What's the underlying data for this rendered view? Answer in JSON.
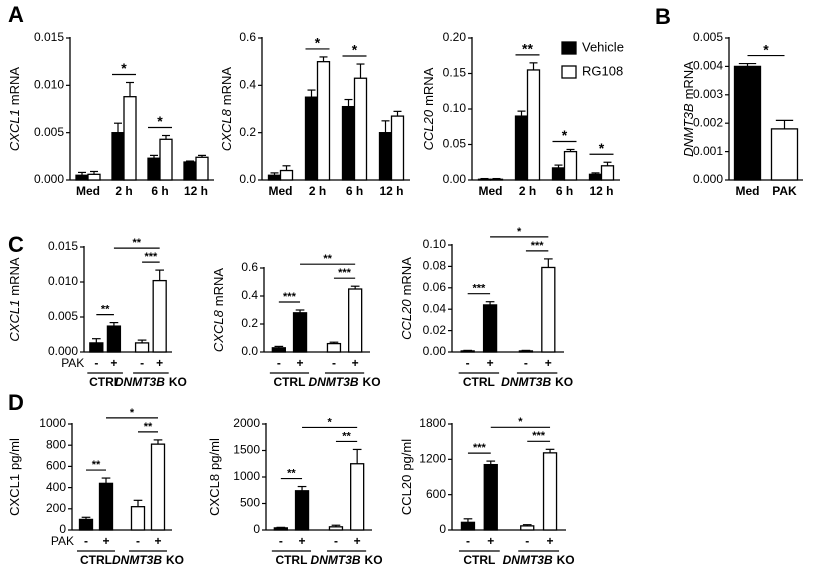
{
  "panel_labels": [
    "A",
    "B",
    "C",
    "D"
  ],
  "chart_data": [
    {
      "type": "bar",
      "ylabel": [
        {
          "text": "CXCL1",
          "italic": true
        },
        {
          "text": "mRNA",
          "italic": false
        }
      ],
      "categories": [
        "Med",
        "2 h",
        "6 h",
        "12 h"
      ],
      "ylim": [
        0,
        0.015
      ],
      "yticks": [
        {
          "value": 0,
          "label": "0.000"
        },
        0.005,
        {
          "value": 0.01,
          "label": "0.010"
        },
        0.015
      ],
      "series": [
        {
          "color": "#000000",
          "values": [
            0.0005,
            0.005,
            0.0023,
            0.0019
          ],
          "errors": [
            0.0003,
            0.001,
            0.0003,
            0.0001
          ]
        },
        {
          "color": "#ffffff",
          "values": [
            0.0006,
            0.0088,
            0.0043,
            0.0024
          ],
          "errors": [
            0.0003,
            0.0015,
            0.0004,
            0.0002
          ]
        }
      ],
      "significance": [
        {
          "category": 1,
          "label": "*"
        },
        {
          "category": 2,
          "label": "*"
        }
      ]
    },
    {
      "type": "bar",
      "ylabel": [
        {
          "text": "CXCL8",
          "italic": true
        },
        {
          "text": "mRNA",
          "italic": false
        }
      ],
      "categories": [
        "Med",
        "2 h",
        "6 h",
        "12 h"
      ],
      "ylim": [
        0,
        0.6
      ],
      "yticks": [
        {
          "value": 0,
          "label": "0.0"
        },
        0.2,
        0.4,
        0.6
      ],
      "series": [
        {
          "color": "#000000",
          "values": [
            0.02,
            0.35,
            0.31,
            0.2
          ],
          "errors": [
            0.01,
            0.03,
            0.03,
            0.05
          ]
        },
        {
          "color": "#ffffff",
          "values": [
            0.04,
            0.5,
            0.43,
            0.27
          ],
          "errors": [
            0.02,
            0.02,
            0.06,
            0.02
          ]
        }
      ],
      "significance": [
        {
          "category": 1,
          "label": "*"
        },
        {
          "category": 2,
          "label": "*"
        }
      ]
    },
    {
      "type": "bar",
      "ylabel": [
        {
          "text": "CCL20",
          "italic": true
        },
        {
          "text": "mRNA",
          "italic": false
        }
      ],
      "categories": [
        "Med",
        "2 h",
        "6 h",
        "12 h"
      ],
      "ylim": [
        0,
        0.2
      ],
      "yticks": [
        {
          "value": 0,
          "label": "0.00"
        },
        0.05,
        {
          "value": 0.1,
          "label": "0.10"
        },
        0.15,
        {
          "value": 0.2,
          "label": "0.20"
        }
      ],
      "series": [
        {
          "name": "Vehicle",
          "color": "#000000",
          "values": [
            0.001,
            0.09,
            0.017,
            0.008
          ],
          "errors": [
            0.001,
            0.007,
            0.004,
            0.002
          ]
        },
        {
          "name": "RG108",
          "color": "#ffffff",
          "values": [
            0.001,
            0.155,
            0.04,
            0.02
          ],
          "errors": [
            0.001,
            0.01,
            0.003,
            0.005
          ]
        }
      ],
      "legend": "upper right",
      "significance": [
        {
          "category": 1,
          "label": "**"
        },
        {
          "category": 2,
          "label": "*"
        },
        {
          "category": 3,
          "label": "*"
        }
      ]
    },
    {
      "type": "bar",
      "ylabel": [
        {
          "text": "DNMT3B",
          "italic": true
        },
        {
          "text": "mRNA",
          "italic": false
        }
      ],
      "categories": [
        "Med",
        "PAK"
      ],
      "ylim": [
        0,
        0.005
      ],
      "yticks": [
        {
          "value": 0,
          "label": "0.000"
        },
        0.001,
        0.002,
        0.003,
        0.004,
        0.005
      ],
      "series": [
        {
          "colors": [
            "#000000",
            "#ffffff"
          ],
          "values": [
            0.004,
            0.0018
          ],
          "errors": [
            0.0001,
            0.0003
          ]
        }
      ],
      "significance": [
        {
          "from": 0,
          "to": 1,
          "label": "*"
        }
      ]
    },
    {
      "type": "bar",
      "ylabel": [
        {
          "text": "CXCL1",
          "italic": true
        },
        {
          "text": "mRNA",
          "italic": false
        }
      ],
      "categories": [
        "-",
        "+",
        "-",
        "+"
      ],
      "row_label": "PAK",
      "groups": [
        [
          {
            "text": "CTRL",
            "italic": false
          }
        ],
        [
          {
            "text": "DNMT3B",
            "italic": true
          },
          {
            "text": "KO",
            "italic": false
          }
        ]
      ],
      "ylim": [
        0,
        0.015
      ],
      "yticks": [
        {
          "value": 0,
          "label": "0.000"
        },
        0.005,
        {
          "value": 0.01,
          "label": "0.010"
        },
        0.015
      ],
      "series": [
        {
          "colors": [
            "#000000",
            "#000000",
            "#ffffff",
            "#ffffff"
          ],
          "values": [
            0.0013,
            0.0037,
            0.0013,
            0.0102
          ],
          "errors": [
            0.0006,
            0.0005,
            0.0004,
            0.0015
          ]
        }
      ],
      "significance": [
        {
          "from": 0,
          "to": 1,
          "label": "**"
        },
        {
          "from": 2,
          "to": 3,
          "label": "***"
        },
        {
          "from": 1,
          "to": 3,
          "label": "**"
        }
      ]
    },
    {
      "type": "bar",
      "ylabel": [
        {
          "text": "CXCL8",
          "italic": true
        },
        {
          "text": "mRNA",
          "italic": false
        }
      ],
      "categories": [
        "-",
        "+",
        "-",
        "+"
      ],
      "groups": [
        [
          {
            "text": "CTRL",
            "italic": false
          }
        ],
        [
          {
            "text": "DNMT3B",
            "italic": true
          },
          {
            "text": "KO",
            "italic": false
          }
        ]
      ],
      "ylim": [
        0,
        0.6
      ],
      "yticks": [
        {
          "value": 0,
          "label": "0.0"
        },
        0.2,
        0.4,
        0.6
      ],
      "series": [
        {
          "colors": [
            "#000000",
            "#000000",
            "#ffffff",
            "#ffffff"
          ],
          "values": [
            0.03,
            0.28,
            0.06,
            0.45
          ],
          "errors": [
            0.01,
            0.02,
            0.01,
            0.02
          ]
        }
      ],
      "significance": [
        {
          "from": 0,
          "to": 1,
          "label": "***"
        },
        {
          "from": 2,
          "to": 3,
          "label": "***"
        },
        {
          "from": 1,
          "to": 3,
          "label": "**"
        }
      ]
    },
    {
      "type": "bar",
      "ylabel": [
        {
          "text": "CCL20",
          "italic": true
        },
        {
          "text": "mRNA",
          "italic": false
        }
      ],
      "categories": [
        "-",
        "+",
        "-",
        "+"
      ],
      "groups": [
        [
          {
            "text": "CTRL",
            "italic": false
          }
        ],
        [
          {
            "text": "DNMT3B",
            "italic": true
          },
          {
            "text": "KO",
            "italic": false
          }
        ]
      ],
      "ylim": [
        0,
        0.1
      ],
      "yticks": [
        {
          "value": 0,
          "label": "0.00"
        },
        0.02,
        0.04,
        0.06,
        0.08,
        {
          "value": 0.1,
          "label": "0.10"
        }
      ],
      "series": [
        {
          "colors": [
            "#000000",
            "#000000",
            "#ffffff",
            "#ffffff"
          ],
          "values": [
            0.001,
            0.044,
            0.001,
            0.079
          ],
          "errors": [
            0.0005,
            0.003,
            0.0005,
            0.008
          ]
        }
      ],
      "significance": [
        {
          "from": 0,
          "to": 1,
          "label": "***"
        },
        {
          "from": 2,
          "to": 3,
          "label": "***"
        },
        {
          "from": 1,
          "to": 3,
          "label": "*"
        }
      ]
    },
    {
      "type": "bar",
      "ylabel": [
        {
          "text": "CXCL1",
          "italic": false
        },
        {
          "text": "pg/ml",
          "italic": false
        }
      ],
      "categories": [
        "-",
        "+",
        "-",
        "+"
      ],
      "row_label": "PAK",
      "groups": [
        [
          {
            "text": "CTRL",
            "italic": false
          }
        ],
        [
          {
            "text": "DNMT3B",
            "italic": true
          },
          {
            "text": "KO",
            "italic": false
          }
        ]
      ],
      "ylim": [
        0,
        1000
      ],
      "yticks": [
        0,
        200,
        400,
        600,
        800,
        1000
      ],
      "series": [
        {
          "colors": [
            "#000000",
            "#000000",
            "#ffffff",
            "#ffffff"
          ],
          "values": [
            100,
            440,
            220,
            810
          ],
          "errors": [
            20,
            50,
            60,
            40
          ]
        }
      ],
      "significance": [
        {
          "from": 0,
          "to": 1,
          "label": "**"
        },
        {
          "from": 2,
          "to": 3,
          "label": "**"
        },
        {
          "from": 1,
          "to": 3,
          "label": "*"
        }
      ]
    },
    {
      "type": "bar",
      "ylabel": [
        {
          "text": "CXCL8",
          "italic": false
        },
        {
          "text": "pg/ml",
          "italic": false
        }
      ],
      "categories": [
        "-",
        "+",
        "-",
        "+"
      ],
      "groups": [
        [
          {
            "text": "CTRL",
            "italic": false
          }
        ],
        [
          {
            "text": "DNMT3B",
            "italic": true
          },
          {
            "text": "KO",
            "italic": false
          }
        ]
      ],
      "ylim": [
        0,
        2000
      ],
      "yticks": [
        0,
        500,
        1000,
        1500,
        2000
      ],
      "series": [
        {
          "colors": [
            "#000000",
            "#000000",
            "#ffffff",
            "#ffffff"
          ],
          "values": [
            40,
            740,
            60,
            1250
          ],
          "errors": [
            10,
            80,
            30,
            270
          ]
        }
      ],
      "significance": [
        {
          "from": 0,
          "to": 1,
          "label": "**"
        },
        {
          "from": 2,
          "to": 3,
          "label": "**"
        },
        {
          "from": 1,
          "to": 3,
          "label": "*"
        }
      ]
    },
    {
      "type": "bar",
      "ylabel": [
        {
          "text": "CCL20",
          "italic": false
        },
        {
          "text": "pg/ml",
          "italic": false
        }
      ],
      "categories": [
        "-",
        "+",
        "-",
        "+"
      ],
      "groups": [
        [
          {
            "text": "CTRL",
            "italic": false
          }
        ],
        [
          {
            "text": "DNMT3B",
            "italic": true
          },
          {
            "text": "KO",
            "italic": false
          }
        ]
      ],
      "ylim": [
        0,
        1800
      ],
      "yticks": [
        0,
        600,
        1200,
        1800
      ],
      "series": [
        {
          "colors": [
            "#000000",
            "#000000",
            "#ffffff",
            "#ffffff"
          ],
          "values": [
            130,
            1110,
            70,
            1310
          ],
          "errors": [
            60,
            60,
            20,
            60
          ]
        }
      ],
      "significance": [
        {
          "from": 0,
          "to": 1,
          "label": "***"
        },
        {
          "from": 2,
          "to": 3,
          "label": "***"
        },
        {
          "from": 1,
          "to": 3,
          "label": "*"
        }
      ]
    }
  ]
}
